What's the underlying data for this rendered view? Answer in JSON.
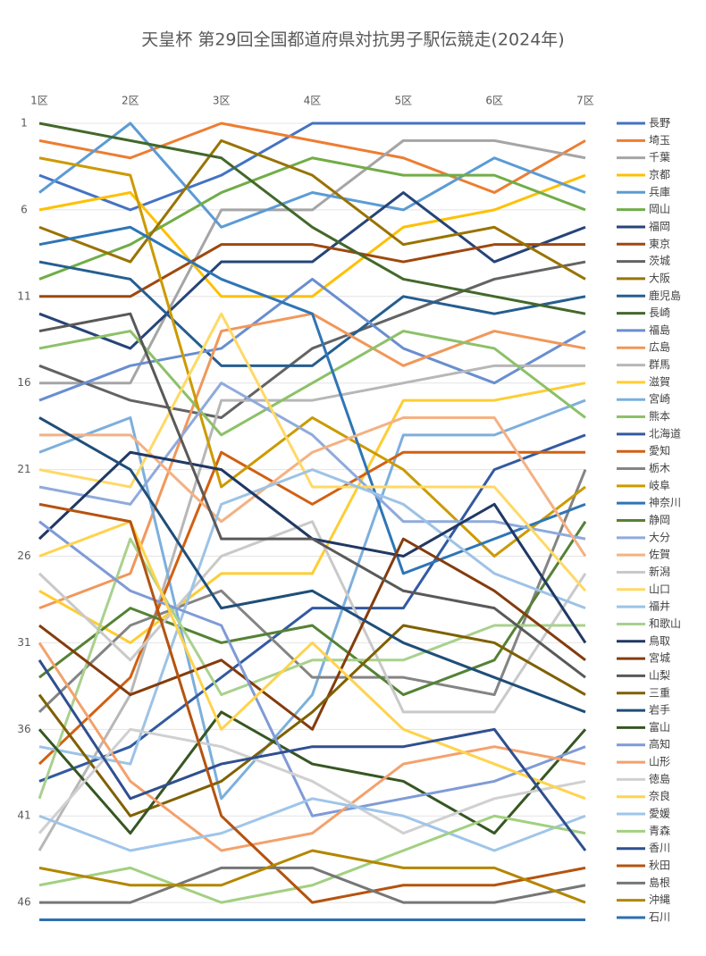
{
  "chart_data": {
    "type": "bump",
    "title": "天皇杯 第29回全国都道府県対抗男子駅伝競走(2024年)",
    "categories": [
      "1区",
      "2区",
      "3区",
      "4区",
      "5区",
      "6区",
      "7区"
    ],
    "ylim": [
      1,
      47
    ],
    "inverted": true,
    "yticks": [
      1,
      6,
      11,
      16,
      21,
      26,
      31,
      36,
      41,
      46
    ],
    "grid": true,
    "series": [
      {
        "name": "長野",
        "color": "#4472c4",
        "values": [
          4,
          6,
          4,
          1,
          1,
          1,
          1
        ]
      },
      {
        "name": "埼玉",
        "color": "#ed7d31",
        "values": [
          2,
          3,
          1,
          2,
          3,
          5,
          2
        ]
      },
      {
        "name": "千葉",
        "color": "#a5a5a5",
        "values": [
          16,
          16,
          6,
          6,
          2,
          2,
          3
        ]
      },
      {
        "name": "京都",
        "color": "#ffc000",
        "values": [
          6,
          5,
          11,
          11,
          7,
          6,
          4
        ]
      },
      {
        "name": "兵庫",
        "color": "#5b9bd5",
        "values": [
          5,
          1,
          7,
          5,
          6,
          3,
          5
        ]
      },
      {
        "name": "岡山",
        "color": "#70ad47",
        "values": [
          10,
          8,
          5,
          3,
          4,
          4,
          6
        ]
      },
      {
        "name": "福岡",
        "color": "#264478",
        "values": [
          12,
          14,
          9,
          9,
          5,
          9,
          7
        ]
      },
      {
        "name": "東京",
        "color": "#9e480e",
        "values": [
          11,
          11,
          8,
          8,
          9,
          8,
          8
        ]
      },
      {
        "name": "茨城",
        "color": "#636363",
        "values": [
          15,
          17,
          18,
          14,
          12,
          10,
          9
        ]
      },
      {
        "name": "大阪",
        "color": "#997300",
        "values": [
          7,
          9,
          2,
          4,
          8,
          7,
          10
        ]
      },
      {
        "name": "鹿児島",
        "color": "#255e91",
        "values": [
          9,
          10,
          15,
          15,
          11,
          12,
          11
        ]
      },
      {
        "name": "長崎",
        "color": "#43682b",
        "values": [
          1,
          2,
          3,
          7,
          10,
          11,
          12
        ]
      },
      {
        "name": "福島",
        "color": "#698ed0",
        "values": [
          17,
          15,
          14,
          10,
          14,
          16,
          13
        ]
      },
      {
        "name": "広島",
        "color": "#f1975a",
        "values": [
          29,
          27,
          13,
          12,
          15,
          13,
          14
        ]
      },
      {
        "name": "群馬",
        "color": "#b7b7b7",
        "values": [
          43,
          34,
          17,
          17,
          16,
          15,
          15
        ]
      },
      {
        "name": "滋賀",
        "color": "#ffcd33",
        "values": [
          28,
          31,
          27,
          27,
          17,
          17,
          16
        ]
      },
      {
        "name": "宮崎",
        "color": "#7cafdd",
        "values": [
          20,
          18,
          40,
          34,
          19,
          19,
          17
        ]
      },
      {
        "name": "熊本",
        "color": "#8cc168",
        "values": [
          14,
          13,
          19,
          16,
          13,
          14,
          18
        ]
      },
      {
        "name": "北海道",
        "color": "#335aa1",
        "values": [
          39,
          37,
          33,
          29,
          29,
          21,
          19
        ]
      },
      {
        "name": "愛知",
        "color": "#d26012",
        "values": [
          38,
          33,
          20,
          23,
          20,
          20,
          20
        ]
      },
      {
        "name": "栃木",
        "color": "#848484",
        "values": [
          35,
          30,
          28,
          33,
          33,
          34,
          21
        ]
      },
      {
        "name": "岐阜",
        "color": "#cc9a00",
        "values": [
          3,
          4,
          22,
          18,
          21,
          26,
          22
        ]
      },
      {
        "name": "神奈川",
        "color": "#2e75b6",
        "values": [
          8,
          7,
          10,
          12,
          27,
          25,
          23
        ]
      },
      {
        "name": "静岡",
        "color": "#548235",
        "values": [
          33,
          29,
          31,
          30,
          34,
          32,
          24
        ]
      },
      {
        "name": "大分",
        "color": "#8faadc",
        "values": [
          22,
          23,
          16,
          19,
          24,
          24,
          25
        ]
      },
      {
        "name": "佐賀",
        "color": "#f4b183",
        "values": [
          19,
          19,
          24,
          20,
          18,
          18,
          26
        ]
      },
      {
        "name": "新潟",
        "color": "#c9c9c9",
        "values": [
          27,
          32,
          26,
          24,
          35,
          35,
          27
        ]
      },
      {
        "name": "山口",
        "color": "#ffd966",
        "values": [
          21,
          22,
          12,
          22,
          22,
          22,
          28
        ]
      },
      {
        "name": "福井",
        "color": "#9dc3e6",
        "values": [
          37,
          38,
          23,
          21,
          23,
          27,
          29
        ]
      },
      {
        "name": "和歌山",
        "color": "#a9d18e",
        "values": [
          40,
          25,
          34,
          32,
          32,
          30,
          30
        ]
      },
      {
        "name": "鳥取",
        "color": "#203864",
        "values": [
          25,
          20,
          21,
          25,
          26,
          23,
          31
        ]
      },
      {
        "name": "宮城",
        "color": "#843c0c",
        "values": [
          30,
          34,
          32,
          36,
          25,
          28,
          32
        ]
      },
      {
        "name": "山梨",
        "color": "#595959",
        "values": [
          13,
          12,
          25,
          25,
          28,
          29,
          33
        ]
      },
      {
        "name": "三重",
        "color": "#7f6000",
        "values": [
          34,
          41,
          39,
          35,
          30,
          31,
          34
        ]
      },
      {
        "name": "岩手",
        "color": "#1f4e79",
        "values": [
          18,
          21,
          29,
          28,
          31,
          33,
          35
        ]
      },
      {
        "name": "富山",
        "color": "#375623",
        "values": [
          36,
          42,
          35,
          38,
          39,
          42,
          36
        ]
      },
      {
        "name": "高知",
        "color": "#7f9bd6",
        "values": [
          24,
          28,
          30,
          41,
          40,
          39,
          37
        ]
      },
      {
        "name": "山形",
        "color": "#f4a16c",
        "values": [
          31,
          39,
          43,
          42,
          38,
          37,
          38
        ]
      },
      {
        "name": "徳島",
        "color": "#d0d0d0",
        "values": [
          42,
          36,
          37,
          39,
          42,
          40,
          39
        ]
      },
      {
        "name": "奈良",
        "color": "#ffd34d",
        "values": [
          26,
          24,
          36,
          31,
          36,
          38,
          40
        ]
      },
      {
        "name": "愛媛",
        "color": "#9fc5ea",
        "values": [
          41,
          43,
          42,
          40,
          41,
          43,
          41
        ]
      },
      {
        "name": "青森",
        "color": "#a2d080",
        "values": [
          45,
          44,
          46,
          45,
          43,
          41,
          42
        ]
      },
      {
        "name": "香川",
        "color": "#2f4f8f",
        "values": [
          32,
          40,
          38,
          37,
          37,
          36,
          43
        ]
      },
      {
        "name": "秋田",
        "color": "#b5530f",
        "values": [
          23,
          24,
          41,
          46,
          45,
          45,
          44
        ]
      },
      {
        "name": "島根",
        "color": "#767676",
        "values": [
          46,
          46,
          44,
          44,
          46,
          46,
          45
        ]
      },
      {
        "name": "沖縄",
        "color": "#b38600",
        "values": [
          44,
          45,
          45,
          43,
          44,
          44,
          46
        ]
      },
      {
        "name": "石川",
        "color": "#2e6fb0",
        "values": [
          47,
          47,
          47,
          47,
          47,
          47,
          47
        ]
      }
    ]
  }
}
